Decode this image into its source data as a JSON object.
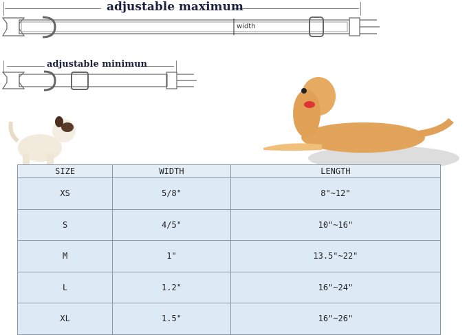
{
  "diagram": {
    "max_label": "adjustable maximum",
    "min_label": "adjustable minimun",
    "width_label": "width"
  },
  "table": {
    "headers": [
      "SIZE",
      "WIDTH",
      "LENGTH"
    ],
    "rows": [
      [
        "XS",
        "5/8\"",
        "8\"~12\""
      ],
      [
        "S",
        "4/5\"",
        "10\"~16\""
      ],
      [
        "M",
        "1\"",
        "13.5\"~22\""
      ],
      [
        "L",
        "1.2\"",
        "16\"~24\""
      ],
      [
        "XL",
        "1.5\"",
        "16\"~26\""
      ]
    ]
  },
  "colors": {
    "table_bg": "#dde9f4",
    "title": "#1c2140"
  }
}
